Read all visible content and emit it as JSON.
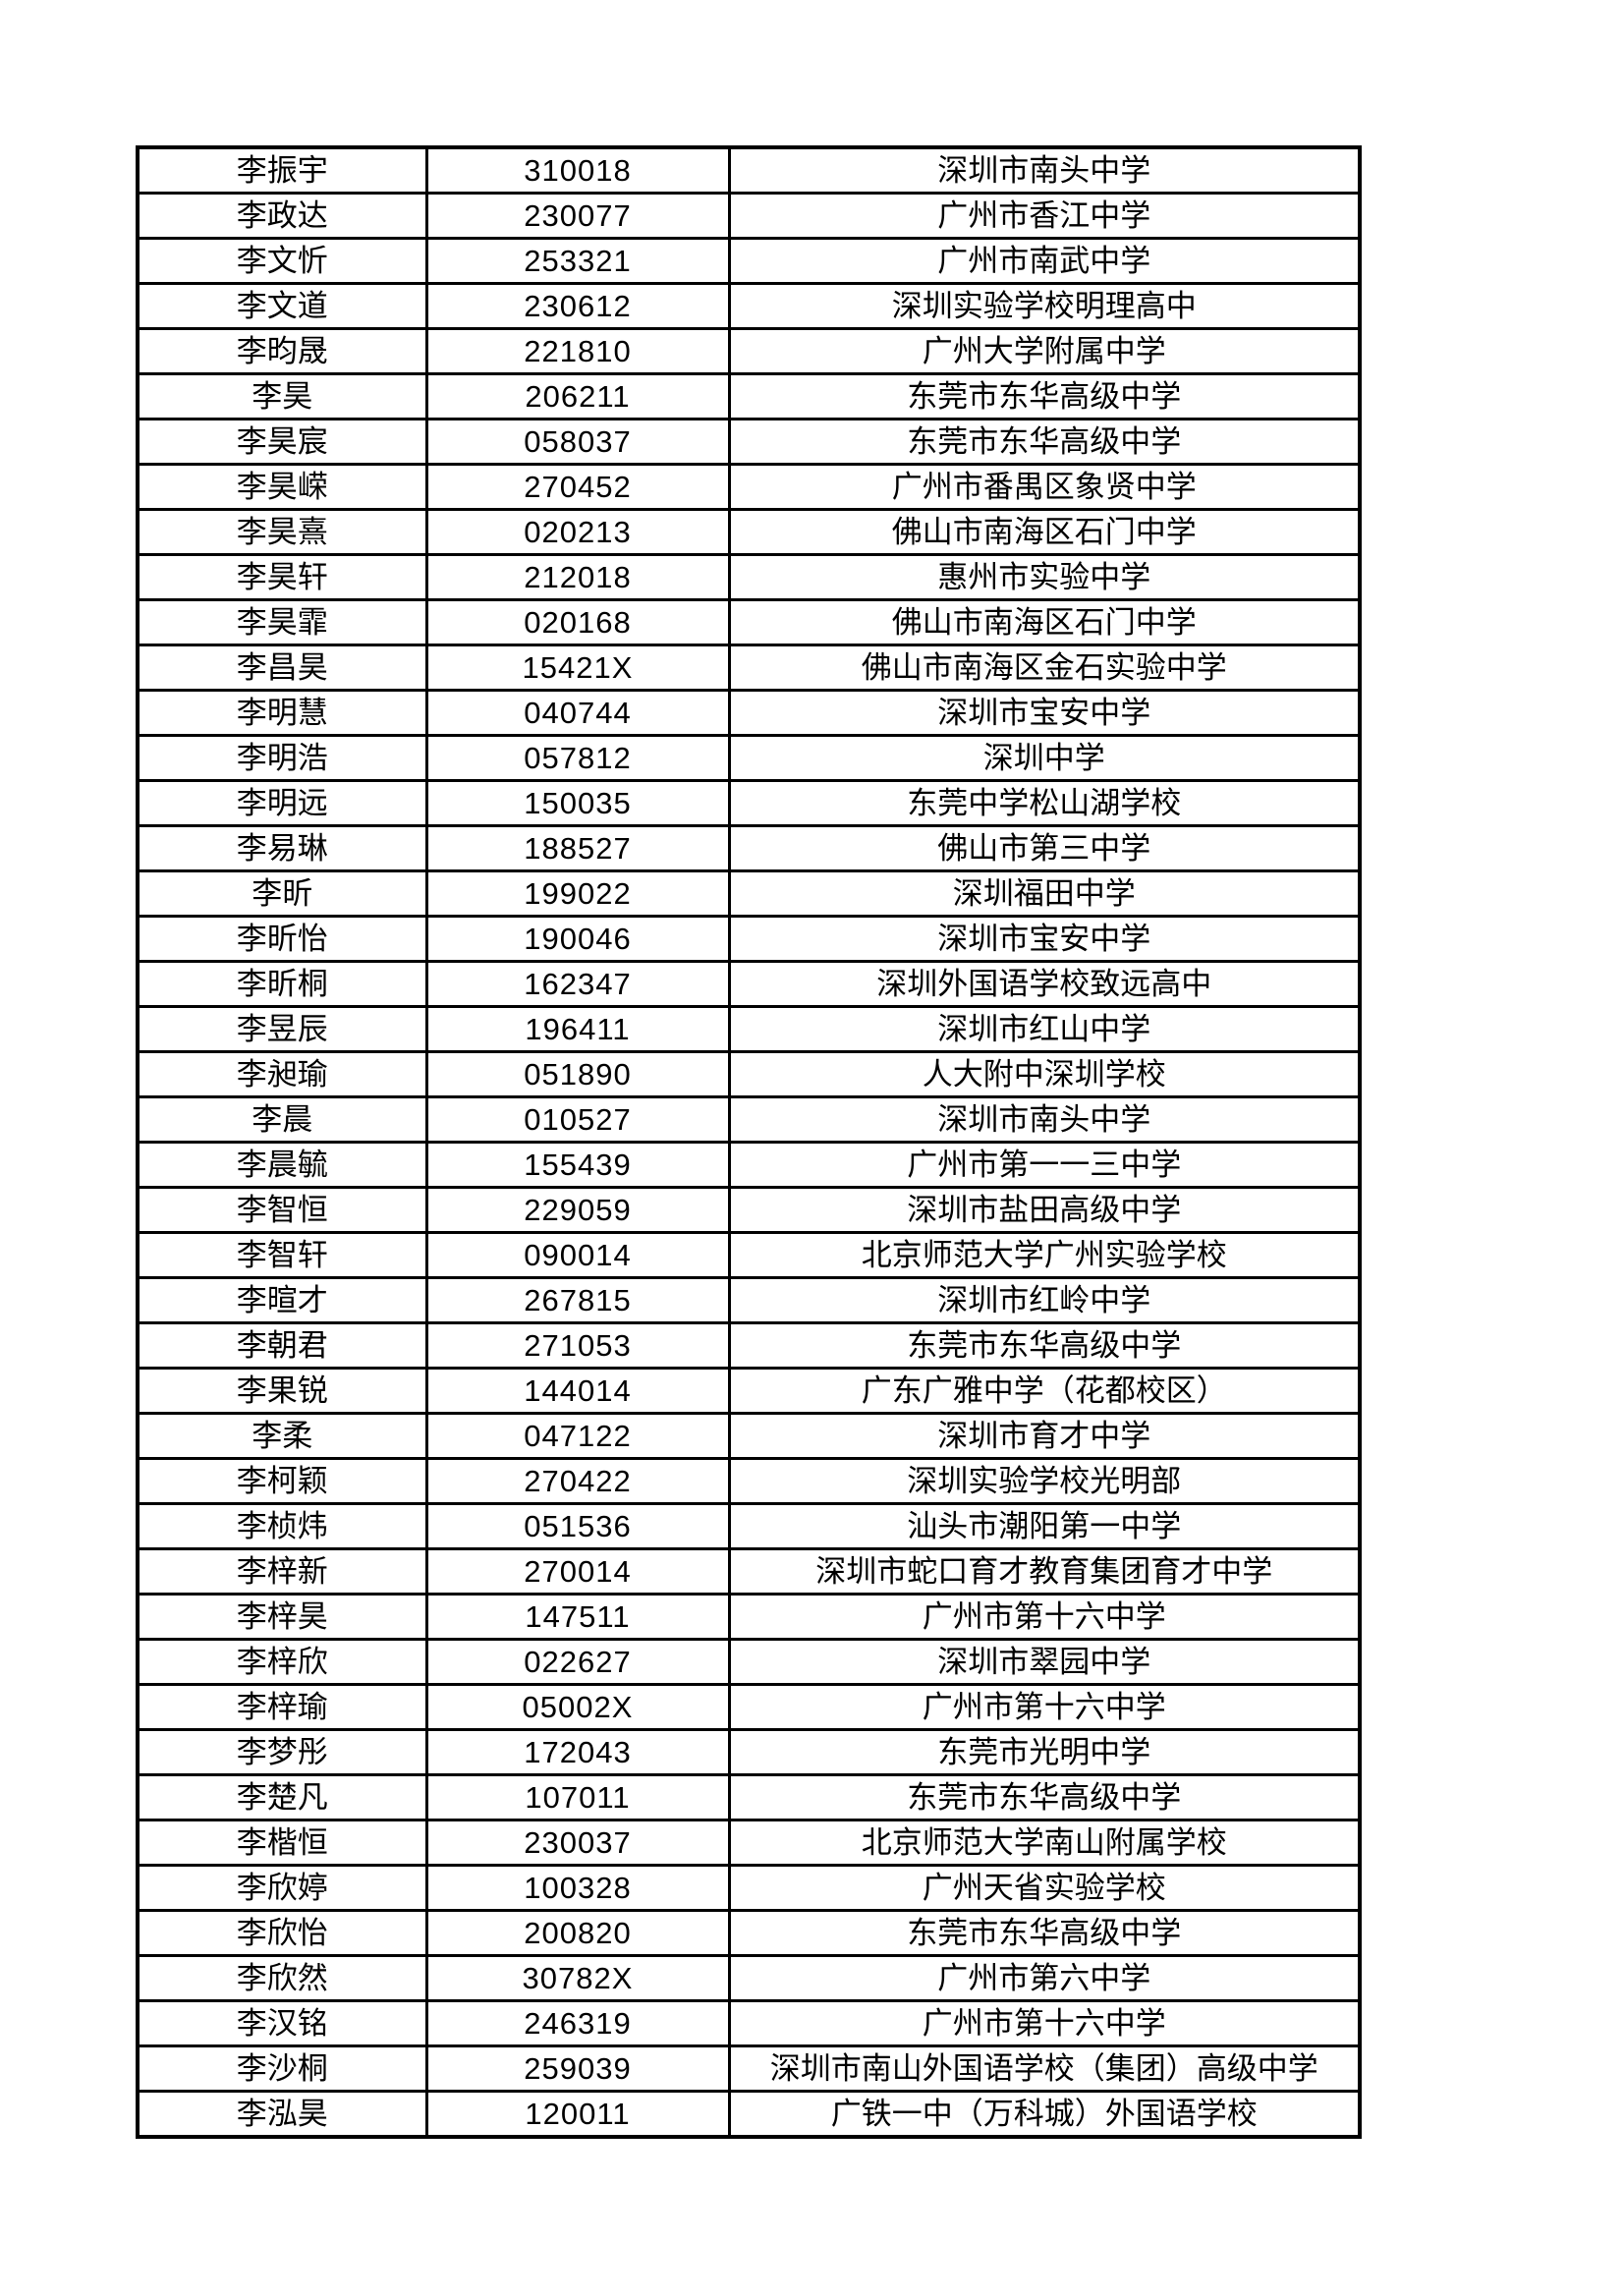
{
  "page": {
    "background_color": "#ffffff",
    "text_color": "#000000",
    "table_border_color": "#000000"
  },
  "table": {
    "column_keys": [
      "name",
      "code",
      "school"
    ],
    "row_count": 44,
    "rows": [
      {
        "name": "李振宇",
        "code": "310018",
        "school": "深圳市南头中学"
      },
      {
        "name": "李政达",
        "code": "230077",
        "school": "广州市香江中学"
      },
      {
        "name": "李文忻",
        "code": "253321",
        "school": "广州市南武中学"
      },
      {
        "name": "李文道",
        "code": "230612",
        "school": "深圳实验学校明理高中"
      },
      {
        "name": "李昀晟",
        "code": "221810",
        "school": "广州大学附属中学"
      },
      {
        "name": "李昊",
        "code": "206211",
        "school": "东莞市东华高级中学"
      },
      {
        "name": "李昊宸",
        "code": "058037",
        "school": "东莞市东华高级中学"
      },
      {
        "name": "李昊嵘",
        "code": "270452",
        "school": "广州市番禺区象贤中学"
      },
      {
        "name": "李昊熹",
        "code": "020213",
        "school": "佛山市南海区石门中学"
      },
      {
        "name": "李昊轩",
        "code": "212018",
        "school": "惠州市实验中学"
      },
      {
        "name": "李昊霏",
        "code": "020168",
        "school": "佛山市南海区石门中学"
      },
      {
        "name": "李昌昊",
        "code": "15421X",
        "school": "佛山市南海区金石实验中学"
      },
      {
        "name": "李明慧",
        "code": "040744",
        "school": "深圳市宝安中学"
      },
      {
        "name": "李明浩",
        "code": "057812",
        "school": "深圳中学"
      },
      {
        "name": "李明远",
        "code": "150035",
        "school": "东莞中学松山湖学校"
      },
      {
        "name": "李易琳",
        "code": "188527",
        "school": "佛山市第三中学"
      },
      {
        "name": "李昕",
        "code": "199022",
        "school": "深圳福田中学"
      },
      {
        "name": "李昕怡",
        "code": "190046",
        "school": "深圳市宝安中学"
      },
      {
        "name": "李昕桐",
        "code": "162347",
        "school": "深圳外国语学校致远高中"
      },
      {
        "name": "李昱辰",
        "code": "196411",
        "school": "深圳市红山中学"
      },
      {
        "name": "李昶瑜",
        "code": "051890",
        "school": "人大附中深圳学校"
      },
      {
        "name": "李晨",
        "code": "010527",
        "school": "深圳市南头中学"
      },
      {
        "name": "李晨毓",
        "code": "155439",
        "school": "广州市第一一三中学"
      },
      {
        "name": "李智恒",
        "code": "229059",
        "school": "深圳市盐田高级中学"
      },
      {
        "name": "李智轩",
        "code": "090014",
        "school": "北京师范大学广州实验学校"
      },
      {
        "name": "李暄才",
        "code": "267815",
        "school": "深圳市红岭中学"
      },
      {
        "name": "李朝君",
        "code": "271053",
        "school": "东莞市东华高级中学"
      },
      {
        "name": "李果锐",
        "code": "144014",
        "school": "广东广雅中学（花都校区）"
      },
      {
        "name": "李柔",
        "code": "047122",
        "school": "深圳市育才中学"
      },
      {
        "name": "李柯颖",
        "code": "270422",
        "school": "深圳实验学校光明部"
      },
      {
        "name": "李桢炜",
        "code": "051536",
        "school": "汕头市潮阳第一中学"
      },
      {
        "name": "李梓新",
        "code": "270014",
        "school": "深圳市蛇口育才教育集团育才中学"
      },
      {
        "name": "李梓昊",
        "code": "147511",
        "school": "广州市第十六中学"
      },
      {
        "name": "李梓欣",
        "code": "022627",
        "school": "深圳市翠园中学"
      },
      {
        "name": "李梓瑜",
        "code": "05002X",
        "school": "广州市第十六中学"
      },
      {
        "name": "李梦彤",
        "code": "172043",
        "school": "东莞市光明中学"
      },
      {
        "name": "李楚凡",
        "code": "107011",
        "school": "东莞市东华高级中学"
      },
      {
        "name": "李楷恒",
        "code": "230037",
        "school": "北京师范大学南山附属学校"
      },
      {
        "name": "李欣婷",
        "code": "100328",
        "school": "广州天省实验学校"
      },
      {
        "name": "李欣怡",
        "code": "200820",
        "school": "东莞市东华高级中学"
      },
      {
        "name": "李欣然",
        "code": "30782X",
        "school": "广州市第六中学"
      },
      {
        "name": "李汉铭",
        "code": "246319",
        "school": "广州市第十六中学"
      },
      {
        "name": "李沙桐",
        "code": "259039",
        "school": "深圳市南山外国语学校（集团）高级中学"
      },
      {
        "name": "李泓昊",
        "code": "120011",
        "school": "广铁一中（万科城）外国语学校"
      }
    ]
  }
}
